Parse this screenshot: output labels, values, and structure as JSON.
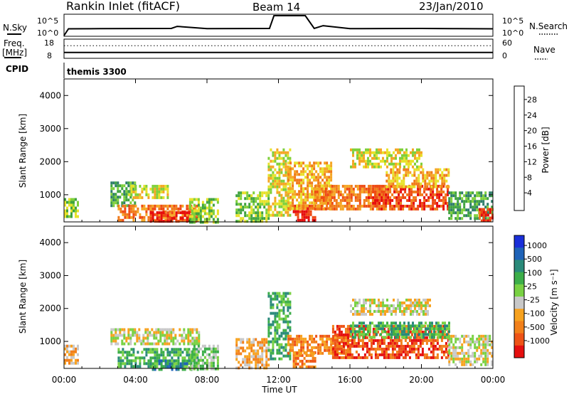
{
  "header": {
    "station": "Rankin Inlet (fitACF)",
    "beam": "Beam 14",
    "date": "23/Jan/2010"
  },
  "colors": {
    "power_scale": [
      "#0a1cf0",
      "#1f4fa8",
      "#2e7d6a",
      "#3fa33f",
      "#7fd03a",
      "#e8e22a",
      "#f5a623",
      "#f07a1a",
      "#ee4a14",
      "#e60d0d"
    ],
    "velocity_scale": [
      "#1a2fd9",
      "#1f63b8",
      "#2a8a7a",
      "#3cae49",
      "#79d143",
      "#c8c8c8",
      "#f7a21f",
      "#f2801a",
      "#ee5316",
      "#e50f0f"
    ]
  },
  "chart_data": [
    {
      "type": "line",
      "panel": "noise",
      "series": [
        {
          "name": "N.Sky",
          "x": [
            "00:00",
            "00:15",
            "02:00",
            "04:00",
            "06:00",
            "06:20",
            "08:00",
            "10:00",
            "11:30",
            "11:45",
            "12:00",
            "12:30",
            "13:00",
            "13:30",
            "14:00",
            "14:30",
            "16:00",
            "18:00",
            "20:00",
            "22:00",
            "24:00"
          ],
          "values": [
            1,
            50,
            55,
            58,
            60,
            200,
            55,
            58,
            60,
            100000,
            100000,
            100000,
            100000,
            100000,
            60,
            300,
            55,
            58,
            60,
            55,
            50
          ]
        },
        {
          "name": "N.Search",
          "x": [
            "00:00",
            "24:00"
          ],
          "values": [
            1,
            50
          ]
        }
      ],
      "ylabels": [
        "10^5",
        "10^0"
      ],
      "y2labels": [
        "10^5",
        "10^0"
      ]
    },
    {
      "type": "line",
      "panel": "frequency",
      "series": [
        {
          "name": "Freq. [MHz]",
          "x": [
            "00:00",
            "06:00",
            "12:00",
            "18:00",
            "24:00"
          ],
          "values": [
            11,
            11,
            11,
            11,
            11
          ]
        },
        {
          "name": "Nave",
          "x": [
            "00:00",
            "12:00",
            "24:00"
          ],
          "values": [
            42,
            42,
            42
          ]
        }
      ],
      "ylabels": [
        "18",
        "8"
      ],
      "y2labels": [
        "60",
        "0"
      ]
    },
    {
      "type": "heatmap",
      "panel": "power",
      "title": "themis 3300",
      "ylabel": "Slant Range [km]",
      "yticks": [
        "1000",
        "2000",
        "3000",
        "4000"
      ],
      "colorbar_label": "Power [dB]",
      "colorbar_ticks": [
        "4",
        "8",
        "12",
        "16",
        "20",
        "24",
        "28"
      ],
      "ylim": [
        180,
        4500
      ],
      "xlim": [
        0,
        24
      ],
      "regions": [
        {
          "t0": 0.0,
          "t1": 0.8,
          "r0": 300,
          "r1": 900,
          "level": 4
        },
        {
          "t0": 2.6,
          "t1": 4.0,
          "r0": 650,
          "r1": 1400,
          "level": 3
        },
        {
          "t0": 3.0,
          "t1": 7.5,
          "r0": 250,
          "r1": 700,
          "level": 7
        },
        {
          "t0": 4.8,
          "t1": 7.5,
          "r0": 180,
          "r1": 500,
          "level": 9
        },
        {
          "t0": 3.6,
          "t1": 5.8,
          "r0": 900,
          "r1": 1300,
          "level": 5
        },
        {
          "t0": 7.0,
          "t1": 8.6,
          "r0": 200,
          "r1": 900,
          "level": 4
        },
        {
          "t0": 9.6,
          "t1": 11.5,
          "r0": 200,
          "r1": 1100,
          "level": 4
        },
        {
          "t0": 11.4,
          "t1": 12.6,
          "r0": 400,
          "r1": 2400,
          "level": 5
        },
        {
          "t0": 12.8,
          "t1": 14.0,
          "r0": 200,
          "r1": 700,
          "level": 9
        },
        {
          "t0": 12.5,
          "t1": 15.0,
          "r0": 600,
          "r1": 2000,
          "level": 6
        },
        {
          "t0": 14.0,
          "t1": 18.0,
          "r0": 600,
          "r1": 1300,
          "level": 7
        },
        {
          "t0": 17.0,
          "t1": 21.5,
          "r0": 600,
          "r1": 1300,
          "level": 8
        },
        {
          "t0": 18.0,
          "t1": 21.5,
          "r0": 1200,
          "r1": 1800,
          "level": 6
        },
        {
          "t0": 16.0,
          "t1": 20.0,
          "r0": 1800,
          "r1": 2400,
          "level": 5
        },
        {
          "t0": 21.5,
          "t1": 24.0,
          "r0": 300,
          "r1": 1100,
          "level": 3
        },
        {
          "t0": 23.2,
          "t1": 24.0,
          "r0": 200,
          "r1": 600,
          "level": 8
        }
      ]
    },
    {
      "type": "heatmap",
      "panel": "velocity",
      "ylabel": "Slant Range [km]",
      "xlabel": "Time UT",
      "xticks": [
        "00:00",
        "04:00",
        "08:00",
        "12:00",
        "16:00",
        "20:00",
        "00:00"
      ],
      "yticks": [
        "1000",
        "2000",
        "3000",
        "4000"
      ],
      "colorbar_label": "Velocity [m s⁻¹]",
      "colorbar_ticks": [
        "1000",
        "500",
        "100",
        "25",
        "-25",
        "-100",
        "-500",
        "-1000"
      ],
      "ylim": [
        180,
        4500
      ],
      "xlim": [
        0,
        24
      ],
      "regions": [
        {
          "t0": 0.0,
          "t1": 0.8,
          "r0": 300,
          "r1": 900,
          "level": 6
        },
        {
          "t0": 2.6,
          "t1": 7.5,
          "r0": 900,
          "r1": 1400,
          "level": 5
        },
        {
          "t0": 3.0,
          "t1": 7.5,
          "r0": 250,
          "r1": 800,
          "level": 3
        },
        {
          "t0": 4.8,
          "t1": 7.5,
          "r0": 180,
          "r1": 450,
          "level": 2
        },
        {
          "t0": 7.0,
          "t1": 8.6,
          "r0": 200,
          "r1": 900,
          "level": 4
        },
        {
          "t0": 9.6,
          "t1": 11.5,
          "r0": 200,
          "r1": 1100,
          "level": 6
        },
        {
          "t0": 11.4,
          "t1": 12.6,
          "r0": 500,
          "r1": 2500,
          "level": 3
        },
        {
          "t0": 12.8,
          "t1": 14.0,
          "r0": 200,
          "r1": 700,
          "level": 7
        },
        {
          "t0": 12.5,
          "t1": 16.0,
          "r0": 600,
          "r1": 1200,
          "level": 7
        },
        {
          "t0": 15.0,
          "t1": 21.5,
          "r0": 500,
          "r1": 1500,
          "level": 8
        },
        {
          "t0": 16.0,
          "t1": 21.5,
          "r0": 1100,
          "r1": 1600,
          "level": 3
        },
        {
          "t0": 16.0,
          "t1": 20.5,
          "r0": 1800,
          "r1": 2300,
          "level": 5
        },
        {
          "t0": 21.5,
          "t1": 24.0,
          "r0": 300,
          "r1": 1200,
          "level": 5
        }
      ]
    }
  ],
  "labels": {
    "nsky": "N.Sky",
    "nsearch": "N.Search",
    "freq_line1": "Freq.",
    "freq_line2": "[MHz]",
    "nave": "Nave",
    "cpid": "CPID"
  }
}
